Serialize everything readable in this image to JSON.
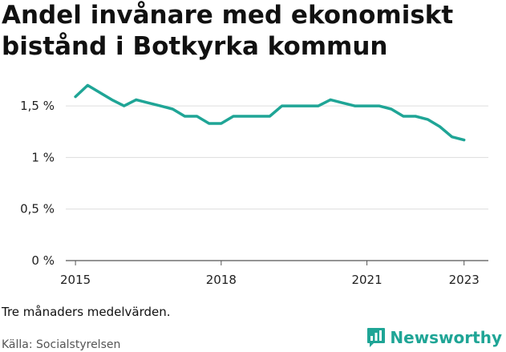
{
  "title": "Andel invånare med ekonomiskt bistånd i Botkyrka kommun",
  "note": "Tre månaders medelvärden.",
  "source": "Källa: Socialstyrelsen",
  "brand": {
    "name": "Newsworthy",
    "icon": "bar-chart-icon",
    "color": "#1fa596"
  },
  "colors": {
    "line": "#1fa596",
    "grid": "#dddddd",
    "axis": "#555555"
  },
  "chart_data": {
    "type": "line",
    "title": "Andel invånare med ekonomiskt bistånd i Botkyrka kommun",
    "xlabel": "",
    "ylabel": "",
    "xlim": [
      2014.8,
      2023.5
    ],
    "ylim": [
      0,
      1.75
    ],
    "y_ticks": [
      0,
      0.5,
      1,
      1.5
    ],
    "y_tick_labels": [
      "0 %",
      "0,5 %",
      "1 %",
      "1,5 %"
    ],
    "x_ticks": [
      2015,
      2018,
      2021,
      2023
    ],
    "x_tick_labels": [
      "2015",
      "2018",
      "2021",
      "2023"
    ],
    "grid": true,
    "series": [
      {
        "name": "Andel invånare med ekonomiskt bistånd",
        "x": [
          2015.0,
          2015.25,
          2015.5,
          2015.75,
          2016.0,
          2016.25,
          2016.5,
          2016.75,
          2017.0,
          2017.25,
          2017.5,
          2017.75,
          2018.0,
          2018.25,
          2018.5,
          2018.75,
          2019.0,
          2019.25,
          2019.5,
          2019.75,
          2020.0,
          2020.25,
          2020.5,
          2020.75,
          2021.0,
          2021.25,
          2021.5,
          2021.75,
          2022.0,
          2022.25,
          2022.5,
          2022.75,
          2023.0
        ],
        "y": [
          1.59,
          1.7,
          1.63,
          1.56,
          1.5,
          1.56,
          1.53,
          1.5,
          1.47,
          1.4,
          1.4,
          1.33,
          1.33,
          1.4,
          1.4,
          1.4,
          1.4,
          1.5,
          1.5,
          1.5,
          1.5,
          1.56,
          1.53,
          1.5,
          1.5,
          1.5,
          1.47,
          1.4,
          1.4,
          1.37,
          1.3,
          1.2,
          1.17
        ]
      }
    ]
  }
}
